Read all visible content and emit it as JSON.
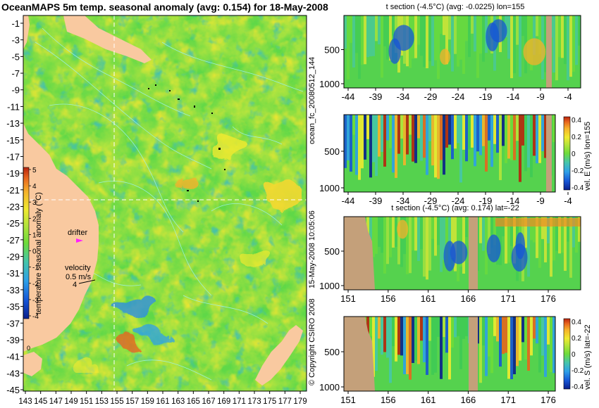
{
  "palette": {
    "ramp": [
      "#0a1f8c",
      "#1655d6",
      "#2ea0e8",
      "#46c6a8",
      "#3fca55",
      "#6edc3a",
      "#b5e43a",
      "#f0ea30",
      "#f6b22a",
      "#e8651e",
      "#b8230e"
    ],
    "land": "#f9c9a0",
    "land_section": "#c4a07a",
    "contour": "#9cf3f0",
    "accent_white": "#ffffff",
    "drifter": "#ff20ff"
  },
  "map": {
    "title": "OceanMAPS 5m temp. seasonal anomaly (avg: 0.154) for 18-May-2008",
    "y_ticks": [
      "-1",
      "-3",
      "-5",
      "-7",
      "-9",
      "-11",
      "-13",
      "-15",
      "-17",
      "-19",
      "-21",
      "-23",
      "-25",
      "-27",
      "-29",
      "-31",
      "-33",
      "-35",
      "-37",
      "-39",
      "-41",
      "-43",
      "-45"
    ],
    "x_ticks": [
      "143",
      "145",
      "147",
      "149",
      "151",
      "153",
      "155",
      "157",
      "159",
      "161",
      "163",
      "165",
      "167",
      "169",
      "171",
      "173",
      "175",
      "177",
      "179"
    ],
    "colorbar_title": "temperature seasonal anomaly (°C)",
    "colorbar_ticks": [
      "5",
      "4",
      "3",
      "2",
      "1",
      "0",
      "-1",
      "-2",
      "-3",
      "-4"
    ],
    "drifter_label": "drifter",
    "velocity_label": "velocity",
    "velocity_value": "0.5 m/s",
    "velocity_scale": "4",
    "small_mark": "0"
  },
  "panels": [
    {
      "title": "t section (-4.5°C) (avg: -0.0225) lon=155",
      "y_ticks": [
        "500",
        "1000"
      ],
      "x_ticks": [
        "-44",
        "-39",
        "-34",
        "-29",
        "-24",
        "-19",
        "-14",
        "-9",
        "-4"
      ],
      "colorbar_label": ""
    },
    {
      "title": "",
      "y_ticks": [
        "500",
        "1000"
      ],
      "x_ticks": [
        "-44",
        "-39",
        "-34",
        "-29",
        "-24",
        "-19",
        "-14",
        "-9",
        "-4"
      ],
      "colorbar_label": "vel. E (m/s) lon=155",
      "colorbar_ticks": [
        "0.4",
        "0.2",
        "0",
        "-0.2",
        "-0.4"
      ]
    },
    {
      "title": "t section (-4.5°C) (avg: 0.174) lat=-22",
      "y_ticks": [
        "500",
        "1000"
      ],
      "x_ticks": [
        "151",
        "156",
        "161",
        "166",
        "171",
        "176"
      ],
      "colorbar_label": ""
    },
    {
      "title": "",
      "y_ticks": [
        "500",
        "1000"
      ],
      "x_ticks": [
        "151",
        "156",
        "161",
        "166",
        "171",
        "176"
      ],
      "colorbar_label": "vel. S (m/s) lat=-22",
      "colorbar_ticks": [
        "0.4",
        "0.2",
        "0",
        "-0.2",
        "-0.4"
      ]
    }
  ],
  "side_labels": {
    "run_id": "ocean_fc_20080512_144",
    "timestamp": "15-May-2008 10:05:06",
    "copyright": "© Copyright CSIRO 2008"
  }
}
